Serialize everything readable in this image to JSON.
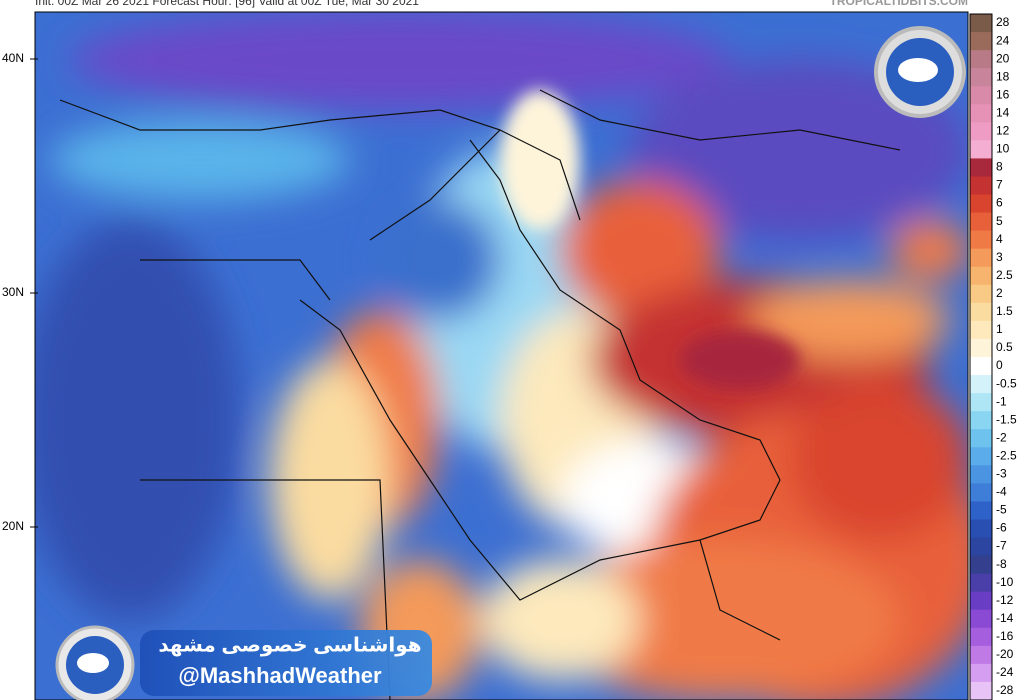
{
  "header": {
    "run_info": "Init: 00Z Mar 26 2021    Forecast Hour: [96]    Valid at 00Z Tue, Mar 30 2021",
    "site": "TROPICALTIDBITS.COM"
  },
  "lat_labels": [
    "40N",
    "30N",
    "20N"
  ],
  "colorbar": {
    "ticks": [
      28,
      24,
      20,
      18,
      16,
      14,
      12,
      10,
      8,
      7,
      6,
      5,
      4,
      3,
      2.5,
      2,
      1.5,
      1,
      0.5,
      0,
      -0.5,
      -1,
      -1.5,
      -2,
      -2.5,
      -3,
      -4,
      -5,
      -6,
      -7,
      -8,
      -10,
      -12,
      -14,
      -16,
      -20,
      -24,
      -28
    ],
    "colors": [
      "#7a5a48",
      "#9a6a5a",
      "#b87a86",
      "#c8849a",
      "#d88aa8",
      "#e592b6",
      "#ee9cc4",
      "#f4aed2",
      "#a8283c",
      "#c43232",
      "#d9442e",
      "#e8603a",
      "#f07a46",
      "#f49a5a",
      "#f7b46e",
      "#f9ca86",
      "#fbdca0",
      "#fde9bc",
      "#fef4da",
      "#ffffff",
      "#d4f2fa",
      "#aee6f6",
      "#8ad6f2",
      "#6ec2ee",
      "#5aacea",
      "#4a94e2",
      "#3e7ed8",
      "#2f62c8",
      "#2a4fb2",
      "#2b45a0",
      "#34408e",
      "#4a3ea8",
      "#6a3ec4",
      "#8a4ad4",
      "#a45ede",
      "#c07ae6",
      "#d69ef0",
      "#e8c4f6"
    ]
  },
  "watermark": {
    "title": "هواشناسی خصوصی مشهد",
    "handle": "@MashhadWeather"
  }
}
